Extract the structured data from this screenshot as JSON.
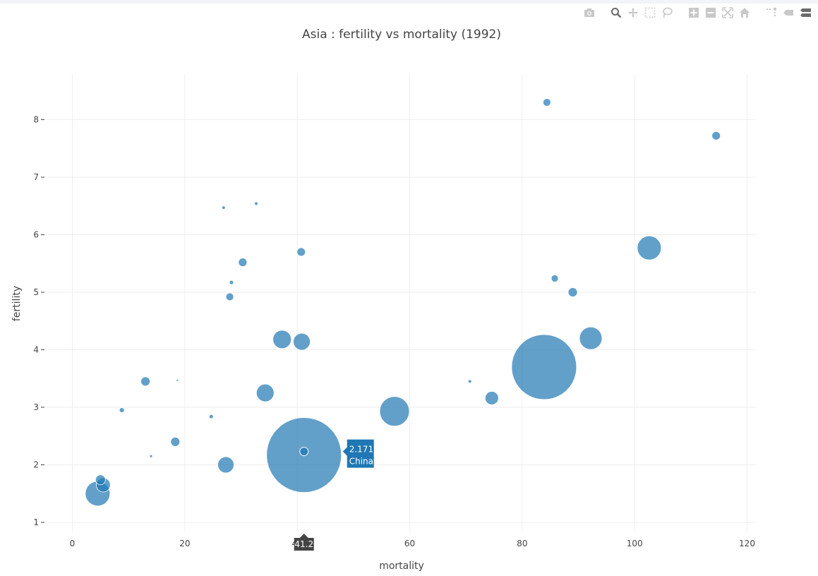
{
  "modebar": {
    "buttons": [
      "camera-icon",
      "zoom-icon",
      "pan-icon",
      "box-select-icon",
      "lasso-select-icon",
      "zoom-in-icon",
      "zoom-out-icon",
      "autoscale-icon",
      "reset-axes-icon",
      "toggle-spike-lines-icon",
      "hover-closest-icon",
      "hover-compare-icon"
    ]
  },
  "chart_data": {
    "type": "scatter",
    "title": "Asia : fertility vs mortality (1992)",
    "xlabel": "mortality",
    "ylabel": "fertility",
    "xlim": [
      -3,
      121
    ],
    "ylim": [
      0.8,
      8.85
    ],
    "xticks": [
      0,
      20,
      40,
      60,
      80,
      100,
      120
    ],
    "yticks": [
      1,
      2,
      3,
      4,
      5,
      6,
      7,
      8
    ],
    "grid": true,
    "marker_color": "#1f77b4",
    "series": [
      {
        "points": [
          {
            "x": 84.4,
            "y": 8.3,
            "size": 11
          },
          {
            "x": 114.5,
            "y": 7.72,
            "size": 12
          },
          {
            "x": 26.9,
            "y": 6.47,
            "size": 5
          },
          {
            "x": 32.7,
            "y": 6.54,
            "size": 5
          },
          {
            "x": 40.7,
            "y": 5.7,
            "size": 12
          },
          {
            "x": 30.3,
            "y": 5.52,
            "size": 12
          },
          {
            "x": 102.6,
            "y": 5.77,
            "size": 34
          },
          {
            "x": 28.3,
            "y": 5.17,
            "size": 6
          },
          {
            "x": 85.8,
            "y": 5.24,
            "size": 10
          },
          {
            "x": 89,
            "y": 5.0,
            "size": 13
          },
          {
            "x": 28,
            "y": 4.92,
            "size": 11
          },
          {
            "x": 37.3,
            "y": 4.18,
            "size": 26
          },
          {
            "x": 40.8,
            "y": 4.14,
            "size": 24
          },
          {
            "x": 92.2,
            "y": 4.2,
            "size": 32
          },
          {
            "x": 83.9,
            "y": 3.7,
            "size": 92
          },
          {
            "x": 13,
            "y": 3.45,
            "size": 13
          },
          {
            "x": 18.7,
            "y": 3.47,
            "size": 3
          },
          {
            "x": 70.7,
            "y": 3.45,
            "size": 5
          },
          {
            "x": 34.3,
            "y": 3.25,
            "size": 25
          },
          {
            "x": 74.6,
            "y": 3.16,
            "size": 19
          },
          {
            "x": 57.3,
            "y": 2.93,
            "size": 42
          },
          {
            "x": 8.8,
            "y": 2.95,
            "size": 7
          },
          {
            "x": 24.7,
            "y": 2.84,
            "size": 6
          },
          {
            "x": 18.3,
            "y": 2.4,
            "size": 13
          },
          {
            "x": 41.2,
            "y": 2.171,
            "size": 106
          },
          {
            "x": 14,
            "y": 2.15,
            "size": 4
          },
          {
            "x": 27.3,
            "y": 2.0,
            "size": 23
          },
          {
            "x": 5.5,
            "y": 1.65,
            "size": 20
          },
          {
            "x": 4.5,
            "y": 1.5,
            "size": 35
          },
          {
            "x": 5,
            "y": 1.74,
            "size": 14
          }
        ]
      }
    ],
    "hover": {
      "x": 41.2,
      "y": 2.171,
      "x_label": "41.2",
      "y_label": "2.171",
      "name": "China"
    }
  }
}
